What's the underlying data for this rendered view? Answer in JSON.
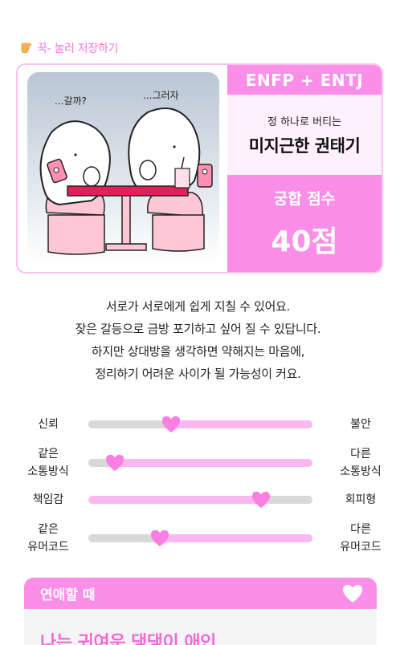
{
  "save_hint": {
    "icon": "pointing-hand-icon",
    "text": "꾹- 눌러 저장하기"
  },
  "illustration": {
    "bubble_left": "...갈까?",
    "bubble_right": "...그러자"
  },
  "result": {
    "types": "ENFP + ENTJ",
    "nickname_sub": "정 하나로 버티는",
    "nickname": "미지근한 권태기",
    "score_label": "궁합 점수",
    "score_value": "40점"
  },
  "description": [
    "서로가 서로에게 쉽게 지칠 수 있어요.",
    "잦은 갈등으로 금방 포기하고 싶어 질 수 있답니다.",
    "하지만 상대방을 생각하면 약해지는 마음에,",
    "정리하기 어려운 사이가 될 가능성이 커요."
  ],
  "metrics": [
    {
      "left": "신뢰",
      "right": "불안",
      "value": 0.37,
      "grey_side": "left"
    },
    {
      "left": "같은\n소통방식",
      "right": "다른\n소통방식",
      "value": 0.12,
      "grey_side": "left"
    },
    {
      "left": "책임감",
      "right": "회피형",
      "value": 0.77,
      "grey_side": "right"
    },
    {
      "left": "같은\n유머코드",
      "right": "다른\n유머코드",
      "value": 0.32,
      "grey_side": "left"
    }
  ],
  "love_section": {
    "title": "연애할 때",
    "icon": "heart-icon",
    "first_line": "나는 귀여운 댕댕이 애인"
  },
  "colors": {
    "accent": "#fb8ee9",
    "accent_light": "#fff1fc",
    "hint_text": "#f27ad6",
    "track_grey": "#d9d9d9"
  }
}
